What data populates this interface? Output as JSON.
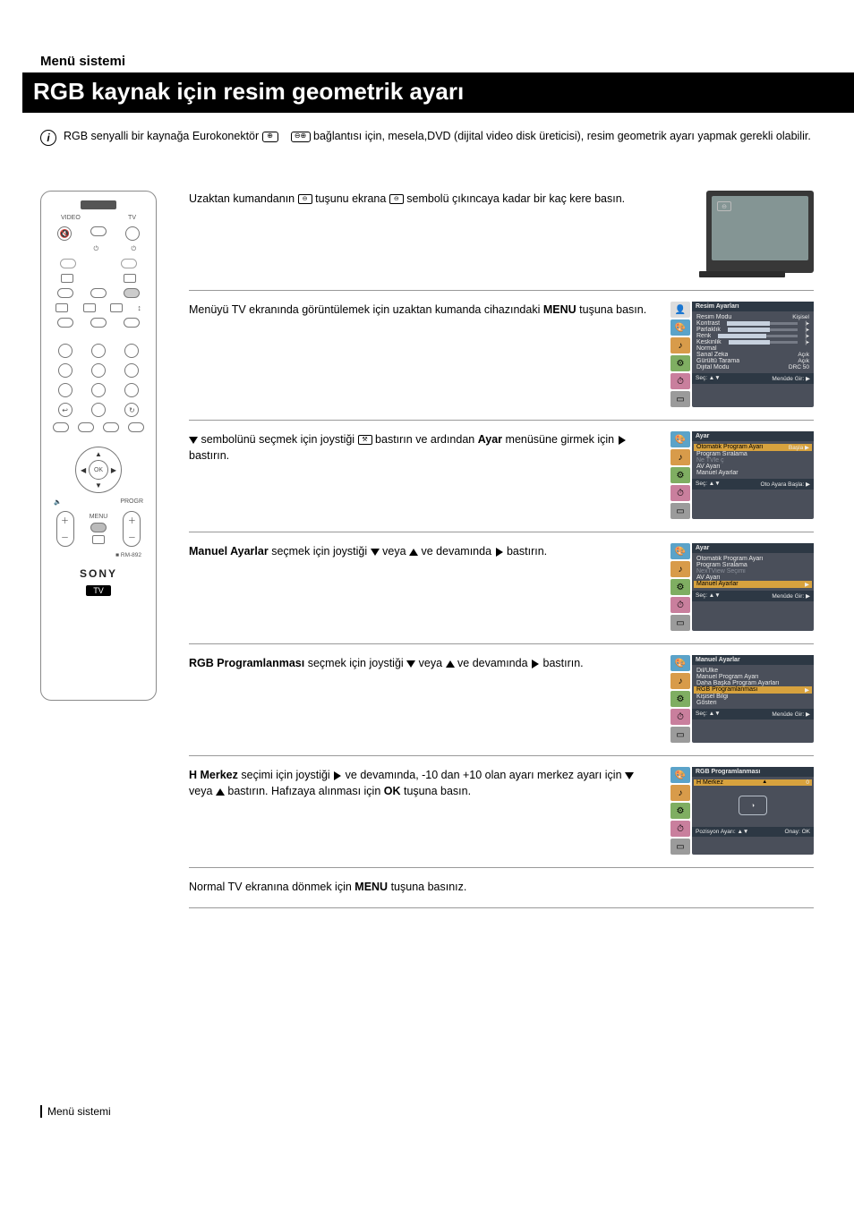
{
  "header": {
    "section_label": "Menü sistemi",
    "title": "RGB kaynak için resim geometrik ayarı"
  },
  "intro": {
    "text_before_icons": "RGB senyalli bir kaynağa Eurokonektör ",
    "text_mid": " bağlantısı için, mesela,DVD (dijital video disk üreticisi), resim geometrik ayarı yapmak gerekli olabilir."
  },
  "steps": [
    {
      "text_parts": {
        "p1": "Uzaktan kumandanın ",
        "p2": " tuşunu ekrana ",
        "p3": " sembolü çıkıncaya kadar bir kaç kere basın."
      }
    },
    {
      "text_parts": {
        "p1": "Menüyü TV ekranında görüntülemek için uzaktan kumanda cihazındaki ",
        "bold1": "MENU",
        "p2": " tuşuna basın."
      }
    },
    {
      "text_parts": {
        "p1": " sembolünü seçmek için joystiği ",
        "p2": " bastırın ve ardından ",
        "bold1": "Ayar",
        "p3": " menüsüne girmek için ",
        "p4": " bastırın."
      }
    },
    {
      "text_parts": {
        "bold1": "Manuel Ayarlar",
        "p1": " seçmek için joystiği ",
        "p2": " veya ",
        "p3": " ve devamında ",
        "p4": " bastırın."
      }
    },
    {
      "text_parts": {
        "bold1": "RGB Programlanması",
        "p1": " seçmek için joystiği ",
        "p2": " veya ",
        "p3": " ve devamında ",
        "p4": " bastırın."
      }
    },
    {
      "text_parts": {
        "bold1": "H Merkez",
        "p1": " seçimi için joystiği ",
        "p2": " ve devamında, -10 dan +10 olan ayarı merkez ayarı için ",
        "p3": " veya ",
        "p4": " bastırın. Hafızaya alınması için ",
        "bold2": "OK",
        "p5": " tuşuna basın."
      }
    },
    {
      "text_parts": {
        "p1": "Normal TV ekranına dönmek için ",
        "bold1": "MENU",
        "p2": " tuşuna basınız."
      }
    }
  ],
  "osd": {
    "step2": {
      "header": "Resim Ayarları",
      "foot_left": "Seç: ▲▼",
      "foot_right": "Menüde Gir: ▶",
      "rows": [
        {
          "lab": "Resim Modu",
          "val": "Kişisel"
        },
        {
          "lab": "Kontrast",
          "bar": true
        },
        {
          "lab": "Parlaklık",
          "bar": true
        },
        {
          "lab": "Renk",
          "bar": true
        },
        {
          "lab": "Keskinlik",
          "bar": true
        },
        {
          "lab": "Normal",
          "val": ""
        },
        {
          "lab": "Sanal Zeka",
          "val": "Açık"
        },
        {
          "lab": "Gürültü Tarama",
          "val": "Açık"
        },
        {
          "lab": "Dijital Modu",
          "val": "DRC 50"
        }
      ]
    },
    "step3": {
      "header": "Ayar",
      "foot_left": "Seç: ▲▼",
      "foot_right": "Oto Ayara Başla: ▶",
      "rows": [
        {
          "lab": "Otomatik Program Ayarı",
          "val": "Başla ▶",
          "active": true
        },
        {
          "lab": "Program Sıralama",
          "val": ""
        },
        {
          "lab": "Ne TVle     ç",
          "val": "",
          "dim": true
        },
        {
          "lab": "AV Ayarı",
          "val": ""
        },
        {
          "lab": "Manuel Ayarlar",
          "val": ""
        }
      ]
    },
    "step4": {
      "header": "Ayar",
      "foot_left": "Seç: ▲▼",
      "foot_right": "Menüde Gir: ▶",
      "rows": [
        {
          "lab": "Otomatik Program Ayarı",
          "val": ""
        },
        {
          "lab": "Program Sıralama",
          "val": ""
        },
        {
          "lab": "NexTView Seçimi",
          "val": "",
          "dim": true
        },
        {
          "lab": "AV Ayarı",
          "val": ""
        },
        {
          "lab": "Manuel Ayarlar",
          "val": "▶",
          "active": true
        }
      ]
    },
    "step5": {
      "header": "Manuel Ayarlar",
      "foot_left": "Seç: ▲▼",
      "foot_right": "Menüde Gir: ▶",
      "rows": [
        {
          "lab": "Dil/Ülke",
          "val": ""
        },
        {
          "lab": "Manuel Program Ayarı",
          "val": ""
        },
        {
          "lab": "Daha Başka Program Ayarları",
          "val": ""
        },
        {
          "lab": "RGB Programlanması",
          "val": "▶",
          "active": true
        },
        {
          "lab": "Kişisel Bilgi",
          "val": ""
        },
        {
          "lab": "Gösteri",
          "val": ""
        }
      ]
    },
    "step6": {
      "header": "RGB Programlanması",
      "foot_left": "Pozisyon Ayarı: ▲▼",
      "foot_right": "Onay: OK",
      "active_row": {
        "lab": "H Merkez",
        "val": "0"
      },
      "gauge_glyph": "◑"
    }
  },
  "remote": {
    "labels": {
      "video": "VIDEO",
      "tv": "TV",
      "pwr": "⏻",
      "menu": "MENU",
      "progr": "PROGR",
      "ok": "OK",
      "rm": "RM-892",
      "brand": "SONY",
      "tag": "TV"
    }
  },
  "footer": {
    "label": "Menü sistemi"
  },
  "colors": {
    "bg": "#ffffff",
    "title_bg": "#000000",
    "title_fg": "#ffffff",
    "osd_bg": "#4a4f5a",
    "osd_hdr": "#2d3844",
    "osd_active": "#d7a23e",
    "tv_frame": "#383838",
    "tv_screen": "#849594",
    "icon_blue": "#5ba3c9",
    "icon_org": "#d89b4a",
    "icon_grn": "#7fae62",
    "icon_pnk": "#c97f9d",
    "icon_gry": "#9b9b9b"
  }
}
